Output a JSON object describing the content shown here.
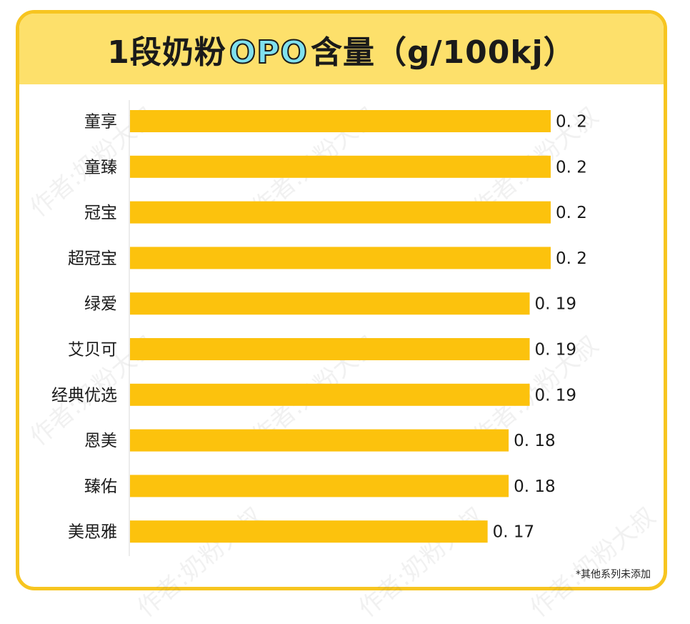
{
  "header": {
    "title_prefix": "1段奶粉",
    "title_highlight": "OPO",
    "title_suffix": "含量（g/100kj）"
  },
  "footnote": "*其他系列未添加",
  "watermark": "作者:奶粉大叔",
  "colors": {
    "bar": "#fcc20d",
    "header_bg": "#fde06b",
    "border": "#f7c520",
    "highlight": "#7fe0ee"
  },
  "chart_data": {
    "type": "bar",
    "orientation": "horizontal",
    "title": "1段奶粉OPO含量（g/100kj）",
    "categories": [
      "童享",
      "童臻",
      "冠宝",
      "超冠宝",
      "绿爱",
      "艾贝可",
      "经典优选",
      "恩美",
      "臻佑",
      "美思雅"
    ],
    "values": [
      0.2,
      0.2,
      0.2,
      0.2,
      0.19,
      0.19,
      0.19,
      0.18,
      0.18,
      0.17
    ],
    "value_labels": [
      "0. 2",
      "0. 2",
      "0. 2",
      "0. 2",
      "0. 19",
      "0. 19",
      "0. 19",
      "0. 18",
      "0. 18",
      "0. 17"
    ],
    "xlim": [
      0,
      0.2
    ],
    "grid": false,
    "legend": "none"
  }
}
